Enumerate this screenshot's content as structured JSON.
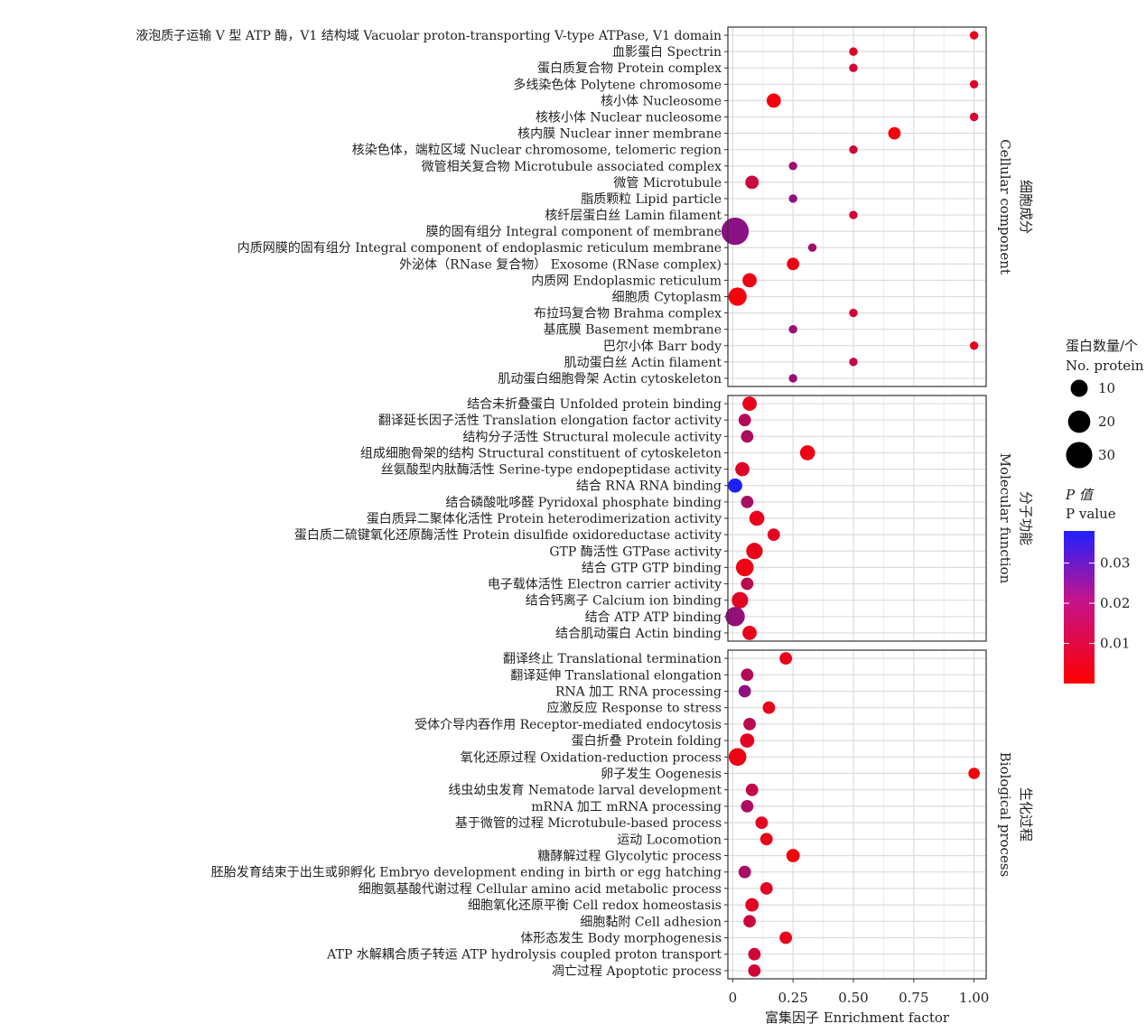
{
  "chart_data": {
    "type": "scatter",
    "xlabel": "富集因子 Enrichment factor",
    "xlim": [
      -0.02,
      1.05
    ],
    "xticks": [
      0,
      0.25,
      0.5,
      0.75,
      1.0
    ],
    "xtick_labels": [
      "0",
      "0.25",
      "0.50",
      "0.75",
      "1.00"
    ],
    "grid": true,
    "facets": [
      {
        "label_cn": "细胞成分",
        "label_en": "Cellular component",
        "points": [
          {
            "term": "液泡质子运输 V 型 ATP 酶，V1 结构域  Vacuolar proton-transporting V-type ATPase, V1 domain",
            "x": 1.0,
            "count": 1,
            "p": 0.004
          },
          {
            "term": "血影蛋白  Spectrin",
            "x": 0.5,
            "count": 1,
            "p": 0.006
          },
          {
            "term": "蛋白质复合物  Protein complex",
            "x": 0.5,
            "count": 1,
            "p": 0.008
          },
          {
            "term": "多线染色体  Polytene chromosome",
            "x": 1.0,
            "count": 1,
            "p": 0.006
          },
          {
            "term": "核小体  Nucleosome",
            "x": 0.17,
            "count": 6,
            "p": 0.002
          },
          {
            "term": "核核小体  Nuclear nucleosome",
            "x": 1.0,
            "count": 1,
            "p": 0.007
          },
          {
            "term": "核内膜  Nuclear inner membrane",
            "x": 0.67,
            "count": 4,
            "p": 0.002
          },
          {
            "term": "核染色体，端粒区域  Nuclear chromosome, telomeric region",
            "x": 0.5,
            "count": 1,
            "p": 0.009
          },
          {
            "term": "微管相关复合物  Microtubule associated complex",
            "x": 0.25,
            "count": 1,
            "p": 0.017
          },
          {
            "term": "微管  Microtubule",
            "x": 0.08,
            "count": 5,
            "p": 0.009
          },
          {
            "term": "脂质颗粒  Lipid particle",
            "x": 0.25,
            "count": 1,
            "p": 0.019
          },
          {
            "term": "核纤层蛋白丝  Lamin filament",
            "x": 0.5,
            "count": 1,
            "p": 0.008
          },
          {
            "term": "膜的固有组分  Integral component of membrane",
            "x": 0.01,
            "count": 33,
            "p": 0.02
          },
          {
            "term": "内质网膜的固有组分  Integral component of endoplasmic reticulum membrane",
            "x": 0.33,
            "count": 1,
            "p": 0.016
          },
          {
            "term": "外泌体（RNase 复合物）  Exosome (RNase complex)",
            "x": 0.25,
            "count": 4,
            "p": 0.003
          },
          {
            "term": "内质网  Endoplasmic reticulum",
            "x": 0.07,
            "count": 6,
            "p": 0.003
          },
          {
            "term": "细胞质  Cytoplasm",
            "x": 0.02,
            "count": 12,
            "p": 0.002
          },
          {
            "term": "布拉玛复合物  Brahma complex",
            "x": 0.5,
            "count": 1,
            "p": 0.008
          },
          {
            "term": "基底膜  Basement membrane",
            "x": 0.25,
            "count": 1,
            "p": 0.017
          },
          {
            "term": "巴尔小体  Barr body",
            "x": 1.0,
            "count": 1,
            "p": 0.004
          },
          {
            "term": "肌动蛋白丝  Actin filament",
            "x": 0.5,
            "count": 1,
            "p": 0.01
          },
          {
            "term": "肌动蛋白细胞骨架  Actin cytoskeleton",
            "x": 0.25,
            "count": 1,
            "p": 0.018
          }
        ]
      },
      {
        "label_cn": "分子功能",
        "label_en": "Molecular function",
        "points": [
          {
            "term": "结合未折叠蛋白  Unfolded protein binding",
            "x": 0.07,
            "count": 6,
            "p": 0.004
          },
          {
            "term": "翻译延长因子活性  Translation elongation factor activity",
            "x": 0.05,
            "count": 4,
            "p": 0.013
          },
          {
            "term": "结构分子活性  Structural molecule activity",
            "x": 0.06,
            "count": 4,
            "p": 0.014
          },
          {
            "term": "组成细胞骨架的结构  Structural constituent of cytoskeleton",
            "x": 0.31,
            "count": 7,
            "p": 0.003
          },
          {
            "term": "丝氨酸型内肽酶活性  Serine-type endopeptidase activity",
            "x": 0.04,
            "count": 6,
            "p": 0.006
          },
          {
            "term": "结合 RNA  RNA binding",
            "x": 0.01,
            "count": 6,
            "p": 0.038
          },
          {
            "term": "结合磷酸吡哆醛  Pyridoxal phosphate binding",
            "x": 0.06,
            "count": 4,
            "p": 0.015
          },
          {
            "term": "蛋白质异二聚体化活性  Protein heterodimerization activity",
            "x": 0.1,
            "count": 7,
            "p": 0.004
          },
          {
            "term": "蛋白质二硫键氧化还原酶活性  Protein disulfide oxidoreductase activity",
            "x": 0.17,
            "count": 4,
            "p": 0.005
          },
          {
            "term": "GTP 酶活性  GTPase activity",
            "x": 0.09,
            "count": 9,
            "p": 0.004
          },
          {
            "term": "结合 GTP  GTP binding",
            "x": 0.05,
            "count": 11,
            "p": 0.003
          },
          {
            "term": "电子载体活性  Electron carrier activity",
            "x": 0.06,
            "count": 4,
            "p": 0.012
          },
          {
            "term": "结合钙离子  Calcium ion binding",
            "x": 0.03,
            "count": 9,
            "p": 0.005
          },
          {
            "term": "结合 ATP  ATP binding",
            "x": 0.01,
            "count": 14,
            "p": 0.018
          },
          {
            "term": "结合肌动蛋白  Actin binding",
            "x": 0.07,
            "count": 6,
            "p": 0.004
          }
        ]
      },
      {
        "label_cn": "生化过程",
        "label_en": "Biological process",
        "points": [
          {
            "term": "翻译终止  Translational termination",
            "x": 0.22,
            "count": 4,
            "p": 0.004
          },
          {
            "term": "翻译延伸  Translational elongation",
            "x": 0.06,
            "count": 4,
            "p": 0.013
          },
          {
            "term": "RNA 加工  RNA processing",
            "x": 0.05,
            "count": 4,
            "p": 0.019
          },
          {
            "term": "应激反应  Response to stress",
            "x": 0.15,
            "count": 4,
            "p": 0.004
          },
          {
            "term": "受体介导内吞作用  Receptor-mediated endocytosis",
            "x": 0.07,
            "count": 4,
            "p": 0.012
          },
          {
            "term": "蛋白折叠  Protein folding",
            "x": 0.06,
            "count": 6,
            "p": 0.005
          },
          {
            "term": "氧化还原过程  Oxidation-reduction process",
            "x": 0.02,
            "count": 11,
            "p": 0.003
          },
          {
            "term": "卵子发生  Oogenesis",
            "x": 1.0,
            "count": 3,
            "p": 0.002
          },
          {
            "term": "线虫幼虫发育  Nematode larval development",
            "x": 0.08,
            "count": 4,
            "p": 0.01
          },
          {
            "term": "mRNA 加工  mRNA processing",
            "x": 0.06,
            "count": 4,
            "p": 0.014
          },
          {
            "term": "基于微管的过程  Microtubule-based process",
            "x": 0.12,
            "count": 4,
            "p": 0.005
          },
          {
            "term": "运动  Locomotion",
            "x": 0.14,
            "count": 4,
            "p": 0.004
          },
          {
            "term": "糖酵解过程  Glycolytic process",
            "x": 0.25,
            "count": 5,
            "p": 0.002
          },
          {
            "term": "胚胎发育结束于出生或卵孵化  Embryo development ending in birth or egg hatching",
            "x": 0.05,
            "count": 4,
            "p": 0.015
          },
          {
            "term": "细胞氨基酸代谢过程  Cellular amino acid metabolic process",
            "x": 0.14,
            "count": 4,
            "p": 0.005
          },
          {
            "term": "细胞氧化还原平衡  Cell redox homeostasis",
            "x": 0.08,
            "count": 5,
            "p": 0.005
          },
          {
            "term": "细胞黏附  Cell adhesion",
            "x": 0.07,
            "count": 4,
            "p": 0.009
          },
          {
            "term": "体形态发生  Body morphogenesis",
            "x": 0.22,
            "count": 4,
            "p": 0.004
          },
          {
            "term": "ATP 水解耦合质子转运  ATP hydrolysis coupled proton transport",
            "x": 0.09,
            "count": 4,
            "p": 0.008
          },
          {
            "term": "凋亡过程  Apoptotic process",
            "x": 0.09,
            "count": 4,
            "p": 0.008
          }
        ]
      }
    ],
    "size_legend": {
      "title_cn": "蛋白数量/个",
      "title_en": "No. protein",
      "breaks": [
        10,
        20,
        30
      ],
      "labels": [
        "10",
        "20",
        "30"
      ]
    },
    "color_legend": {
      "title_cn": "P 值",
      "title_en": "P  value",
      "low_color": "#ff0000",
      "high_color": "#2020ff",
      "range": [
        0.0,
        0.038
      ],
      "breaks": [
        0.01,
        0.02,
        0.03
      ],
      "labels": [
        "0.01",
        "0.02",
        "0.03"
      ]
    }
  }
}
